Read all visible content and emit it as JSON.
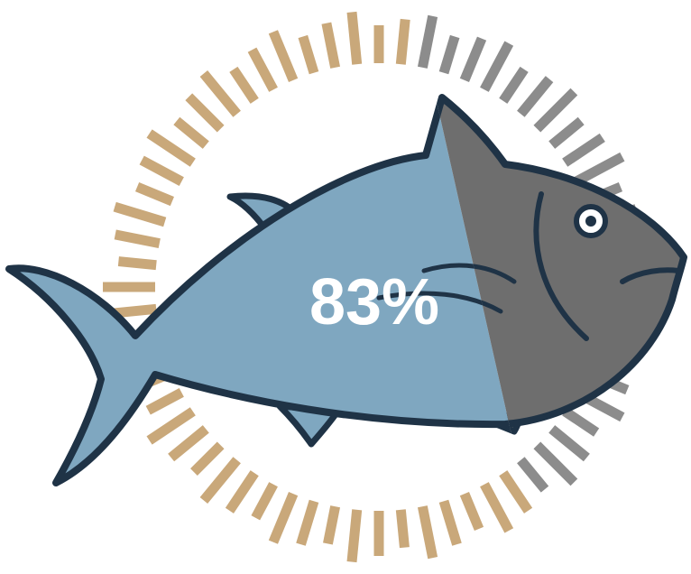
{
  "chart_data": {
    "type": "pictorial",
    "values": [
      83
    ],
    "value_labels": [
      "83%"
    ],
    "ylim": [
      0,
      100
    ],
    "color": "#7fa7c0"
  }
}
